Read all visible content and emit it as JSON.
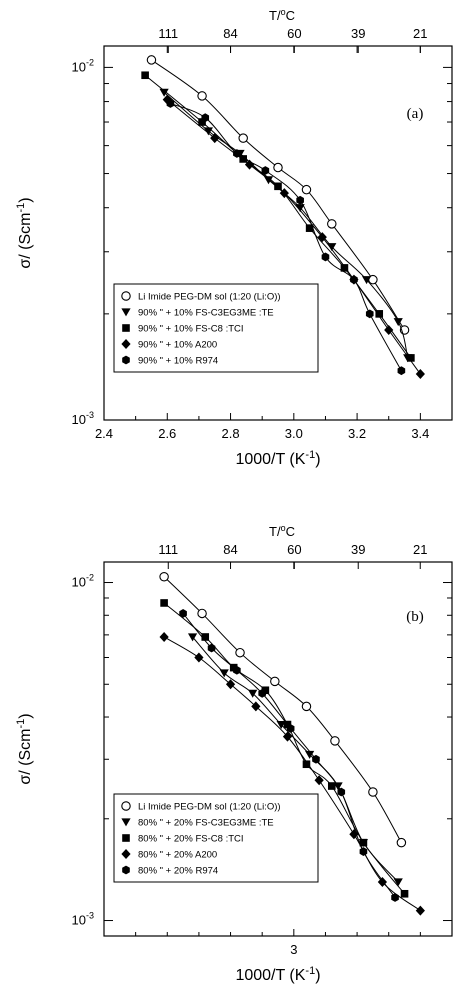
{
  "chart_data": [
    {
      "type": "line",
      "panel_label": "(a)",
      "xlabel": "1000/T (K",
      "xlabel_sup": "-1",
      "xlabel_tail": ")",
      "ylabel": "σ/ (Scm",
      "ylabel_sup": "-1",
      "ylabel_tail": ")",
      "top_label": "T/",
      "top_label_sup": "o",
      "top_label_tail": "C",
      "xlim": [
        2.4,
        3.5
      ],
      "ylim": [
        0.001,
        0.0115
      ],
      "y_scale": "log",
      "x_ticks": [
        2.4,
        2.6,
        2.8,
        3.0,
        3.2,
        3.4
      ],
      "x_tick_labels": [
        "2.4",
        "2.6",
        "2.8",
        "3.0",
        "3.2",
        "3.4"
      ],
      "y_ticks": [
        0.01,
        0.001
      ],
      "y_tick_labels": [
        {
          "base": "10",
          "exp": "-2"
        },
        {
          "base": "10",
          "exp": "-3"
        }
      ],
      "top_ticks": [
        111,
        84,
        60,
        39,
        21
      ],
      "top_tick_labels": [
        "111",
        "84",
        "60",
        "39",
        "21"
      ],
      "legend_position": "bottom-left",
      "series": [
        {
          "name": "Li Imide PEG-DM sol (1:20 (Li:O))",
          "marker": "circle-open",
          "x": [
            2.55,
            2.71,
            2.84,
            2.95,
            3.04,
            3.12,
            3.25,
            3.35
          ],
          "y": [
            0.0105,
            0.0083,
            0.0063,
            0.0052,
            0.0045,
            0.0036,
            0.0025,
            0.0018
          ]
        },
        {
          "name": "90% \" + 10% FS-C3EG3ME :TE",
          "marker": "triangle-down",
          "x": [
            2.59,
            2.73,
            2.83,
            2.92,
            3.02,
            3.12,
            3.23,
            3.33,
            3.36
          ],
          "y": [
            0.0085,
            0.0066,
            0.0057,
            0.0048,
            0.004,
            0.0031,
            0.0025,
            0.0019,
            0.0015
          ]
        },
        {
          "name": "90% \" + 10% FS-C8 :TCI",
          "marker": "square",
          "x": [
            2.53,
            2.71,
            2.84,
            2.95,
            3.05,
            3.16,
            3.27,
            3.37
          ],
          "y": [
            0.0095,
            0.007,
            0.0055,
            0.0046,
            0.0035,
            0.0027,
            0.002,
            0.0015
          ]
        },
        {
          "name": "90% \" + 10% A200",
          "marker": "diamond",
          "x": [
            2.6,
            2.75,
            2.86,
            2.97,
            3.09,
            3.19,
            3.3,
            3.4
          ],
          "y": [
            0.0081,
            0.0063,
            0.0053,
            0.0044,
            0.0033,
            0.0025,
            0.0018,
            0.00135
          ]
        },
        {
          "name": "90% \" + 10% R974",
          "marker": "hexagon",
          "x": [
            2.61,
            2.72,
            2.82,
            2.91,
            3.02,
            3.1,
            3.19,
            3.24,
            3.34
          ],
          "y": [
            0.0079,
            0.0072,
            0.0057,
            0.0051,
            0.0042,
            0.0029,
            0.0025,
            0.002,
            0.00138
          ]
        }
      ]
    },
    {
      "type": "line",
      "panel_label": "(b)",
      "xlabel": "1000/T (K",
      "xlabel_sup": "-1",
      "xlabel_tail": ")",
      "ylabel": "σ/ (Scm",
      "ylabel_sup": "-1",
      "ylabel_tail": ")",
      "top_label": "T/",
      "top_label_sup": "o",
      "top_label_tail": "C",
      "xlim": [
        2.4,
        3.5
      ],
      "ylim": [
        0.0009,
        0.0115
      ],
      "y_scale": "log",
      "x_ticks": [
        3.0
      ],
      "x_tick_labels": [
        "3"
      ],
      "y_ticks": [
        0.01,
        0.001
      ],
      "y_tick_labels": [
        {
          "base": "10",
          "exp": "-2"
        },
        {
          "base": "10",
          "exp": "-3"
        }
      ],
      "top_ticks": [
        111,
        84,
        60,
        39,
        21
      ],
      "top_tick_labels": [
        "111",
        "84",
        "60",
        "39",
        "21"
      ],
      "legend_position": "bottom-left",
      "series": [
        {
          "name": "Li Imide PEG-DM sol (1:20 (Li:O))",
          "marker": "circle-open",
          "x": [
            2.59,
            2.71,
            2.83,
            2.94,
            3.04,
            3.13,
            3.25,
            3.34
          ],
          "y": [
            0.0104,
            0.0081,
            0.0062,
            0.0051,
            0.0043,
            0.0034,
            0.0024,
            0.0017
          ]
        },
        {
          "name": "80% \" + 20% FS-C3EG3ME :TE",
          "marker": "triangle-down",
          "x": [
            2.68,
            2.78,
            2.87,
            2.96,
            3.05,
            3.14,
            3.22,
            3.33
          ],
          "y": [
            0.0069,
            0.0054,
            0.0047,
            0.0038,
            0.0031,
            0.0025,
            0.0017,
            0.0013
          ]
        },
        {
          "name": "80% \" + 20% FS-C8 :TCI",
          "marker": "square",
          "x": [
            2.59,
            2.72,
            2.81,
            2.91,
            2.98,
            3.04,
            3.12,
            3.22,
            3.35
          ],
          "y": [
            0.0087,
            0.0069,
            0.0056,
            0.0048,
            0.0038,
            0.0029,
            0.0025,
            0.0017,
            0.0012
          ]
        },
        {
          "name": "80% \" + 20% A200",
          "marker": "diamond",
          "x": [
            2.59,
            2.7,
            2.8,
            2.88,
            2.98,
            3.08,
            3.19,
            3.28,
            3.4
          ],
          "y": [
            0.0069,
            0.006,
            0.005,
            0.0043,
            0.0035,
            0.0026,
            0.0018,
            0.0013,
            0.00107
          ]
        },
        {
          "name": "80% \" + 20% R974",
          "marker": "hexagon",
          "x": [
            2.65,
            2.74,
            2.82,
            2.9,
            2.99,
            3.07,
            3.15,
            3.22,
            3.32
          ],
          "y": [
            0.0081,
            0.0064,
            0.0055,
            0.0047,
            0.0037,
            0.003,
            0.0024,
            0.0016,
            0.00117
          ]
        }
      ]
    }
  ]
}
